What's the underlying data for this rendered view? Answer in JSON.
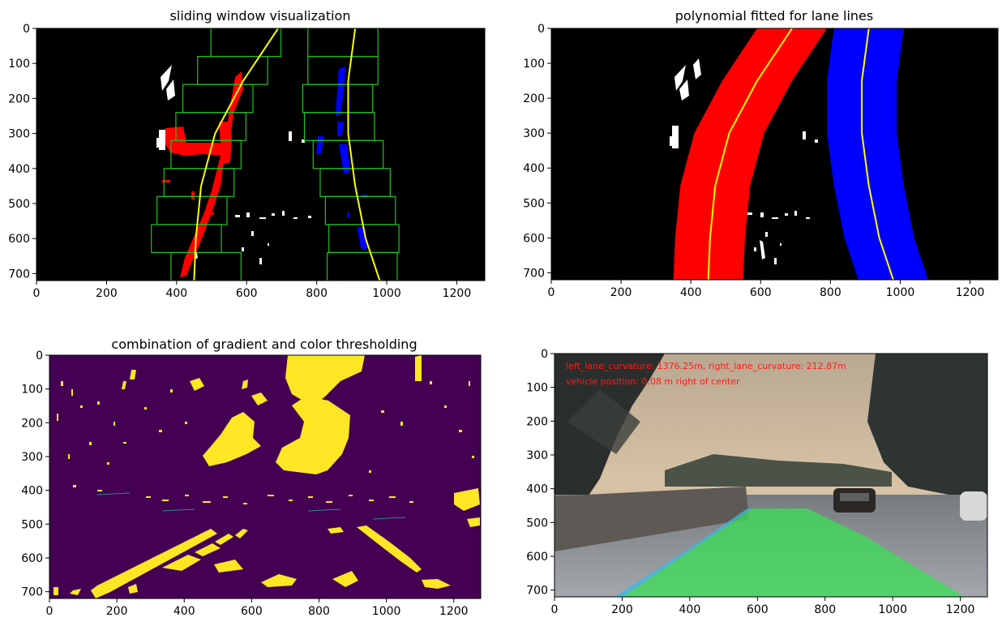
{
  "figure": {
    "background": "#ffffff",
    "axes_color": "#000000"
  },
  "chart_data": [
    {
      "id": "sliding",
      "type": "image",
      "title": "sliding window visualization",
      "xlabel": "",
      "ylabel": "",
      "xlim": [
        0,
        1280
      ],
      "ylim": [
        720,
        0
      ],
      "xticks": [
        0,
        200,
        400,
        600,
        800,
        1000,
        1200
      ],
      "yticks": [
        0,
        100,
        200,
        300,
        400,
        500,
        600,
        700
      ],
      "background_color": "#000000",
      "window_color": "#22c322",
      "left_pixels_color": "#ff0000",
      "right_pixels_color": "#0000ff",
      "fit_color": "#ffff00",
      "left_fit": {
        "x": [
          690,
          590,
          510,
          470,
          455,
          450
        ],
        "y": [
          0,
          150,
          300,
          450,
          600,
          720
        ]
      },
      "right_fit": {
        "x": [
          910,
          890,
          890,
          910,
          940,
          980
        ],
        "y": [
          0,
          150,
          300,
          450,
          600,
          720
        ]
      },
      "windows": [
        {
          "x": [
            498,
            698
          ],
          "y": [
            0,
            80
          ]
        },
        {
          "x": [
            460,
            660
          ],
          "y": [
            80,
            160
          ]
        },
        {
          "x": [
            418,
            618
          ],
          "y": [
            160,
            240
          ]
        },
        {
          "x": [
            398,
            598
          ],
          "y": [
            240,
            320
          ]
        },
        {
          "x": [
            384,
            584
          ],
          "y": [
            320,
            400
          ]
        },
        {
          "x": [
            364,
            564
          ],
          "y": [
            400,
            480
          ]
        },
        {
          "x": [
            344,
            544
          ],
          "y": [
            480,
            560
          ]
        },
        {
          "x": [
            328,
            528
          ],
          "y": [
            560,
            640
          ]
        },
        {
          "x": [
            384,
            584
          ],
          "y": [
            640,
            720
          ]
        },
        {
          "x": [
            775,
            975
          ],
          "y": [
            0,
            80
          ]
        },
        {
          "x": [
            775,
            975
          ],
          "y": [
            80,
            160
          ]
        },
        {
          "x": [
            760,
            960
          ],
          "y": [
            160,
            240
          ]
        },
        {
          "x": [
            765,
            965
          ],
          "y": [
            240,
            320
          ]
        },
        {
          "x": [
            790,
            990
          ],
          "y": [
            320,
            400
          ]
        },
        {
          "x": [
            810,
            1010
          ],
          "y": [
            400,
            480
          ]
        },
        {
          "x": [
            825,
            1025
          ],
          "y": [
            480,
            560
          ]
        },
        {
          "x": [
            835,
            1035
          ],
          "y": [
            560,
            640
          ]
        },
        {
          "x": [
            830,
            1030
          ],
          "y": [
            640,
            720
          ]
        }
      ]
    },
    {
      "id": "poly",
      "type": "image",
      "title": "polynomial fitted for lane lines",
      "xlabel": "",
      "ylabel": "",
      "xlim": [
        0,
        1280
      ],
      "ylim": [
        720,
        0
      ],
      "xticks": [
        0,
        200,
        400,
        600,
        800,
        1000,
        1200
      ],
      "yticks": [
        0,
        100,
        200,
        300,
        400,
        500,
        600,
        700
      ],
      "background_color": "#000000",
      "left_band_color": "#ff0000",
      "right_band_color": "#0000ff",
      "fit_color": "#ffff00",
      "band_half_width": 100,
      "left_fit": {
        "x": [
          690,
          590,
          510,
          470,
          455,
          450
        ],
        "y": [
          0,
          150,
          300,
          450,
          600,
          720
        ]
      },
      "right_fit": {
        "x": [
          910,
          890,
          890,
          910,
          940,
          980
        ],
        "y": [
          0,
          150,
          300,
          450,
          600,
          720
        ]
      }
    },
    {
      "id": "binary",
      "type": "heatmap",
      "title": "combination of gradient and color thresholding",
      "xlabel": "",
      "ylabel": "",
      "xlim": [
        0,
        1280
      ],
      "ylim": [
        720,
        0
      ],
      "xticks": [
        0,
        200,
        400,
        600,
        800,
        1000,
        1200
      ],
      "yticks": [
        0,
        100,
        200,
        300,
        400,
        500,
        600,
        700
      ],
      "background_color": "#440154",
      "foreground_color": "#fde725",
      "lane_left": {
        "x": [
          140,
          360,
          570
        ],
        "y": [
          720,
          600,
          460
        ]
      },
      "lane_right": {
        "x": [
          1020,
          860,
          730
        ],
        "y": [
          720,
          580,
          460
        ]
      }
    },
    {
      "id": "result",
      "type": "image",
      "title": "",
      "xlabel": "",
      "ylabel": "",
      "xlim": [
        0,
        1280
      ],
      "ylim": [
        720,
        0
      ],
      "xticks": [
        0,
        200,
        400,
        600,
        800,
        1000,
        1200
      ],
      "yticks": [
        0,
        100,
        200,
        300,
        400,
        500,
        600,
        700
      ],
      "overlay_text_color": "#ff1a1a",
      "lane_fill_color": "#3ddc5a",
      "annotations": [
        "left_lane_curvature: 1376.25m, right_lane_curvature: 212.87m",
        "vehicle position: 0.08 m right of center"
      ]
    }
  ]
}
